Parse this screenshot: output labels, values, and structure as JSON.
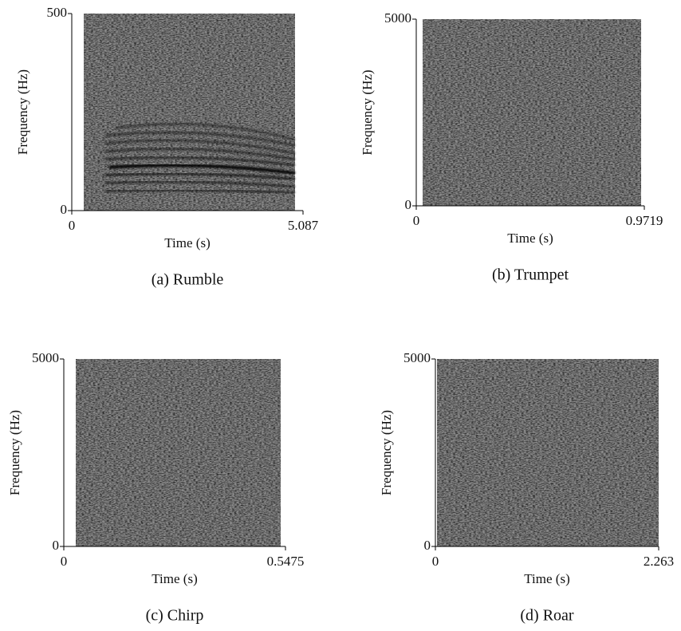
{
  "chart_data": [
    {
      "type": "spectrogram",
      "xlabel": "Time (s)",
      "ylabel": "Frequency (Hz)",
      "caption": "(a) Rumble",
      "xlim": [
        0,
        5.087
      ],
      "xticks": [
        0,
        5.087
      ],
      "ylim": [
        0,
        500
      ],
      "yticks": [
        0,
        500
      ]
    },
    {
      "type": "spectrogram",
      "xlabel": "Time (s)",
      "ylabel": "Frequency (Hz)",
      "caption": "(b) Trumpet",
      "xlim": [
        0,
        0.9719
      ],
      "xticks": [
        0,
        0.9719
      ],
      "ylim": [
        0,
        5000
      ],
      "yticks": [
        0,
        5000
      ]
    },
    {
      "type": "spectrogram",
      "xlabel": "Time (s)",
      "ylabel": "Frequency (Hz)",
      "caption": "(c) Chirp",
      "xlim": [
        0,
        0.5475
      ],
      "xticks": [
        0,
        0.5475
      ],
      "ylim": [
        0,
        5000
      ],
      "yticks": [
        0,
        5000
      ]
    },
    {
      "type": "spectrogram",
      "xlabel": "Time (s)",
      "ylabel": "Frequency (Hz)",
      "caption": "(d) Roar",
      "xlim": [
        0,
        2.263
      ],
      "xticks": [
        0,
        2.263
      ],
      "ylim": [
        0,
        5000
      ],
      "yticks": [
        0,
        5000
      ]
    }
  ]
}
